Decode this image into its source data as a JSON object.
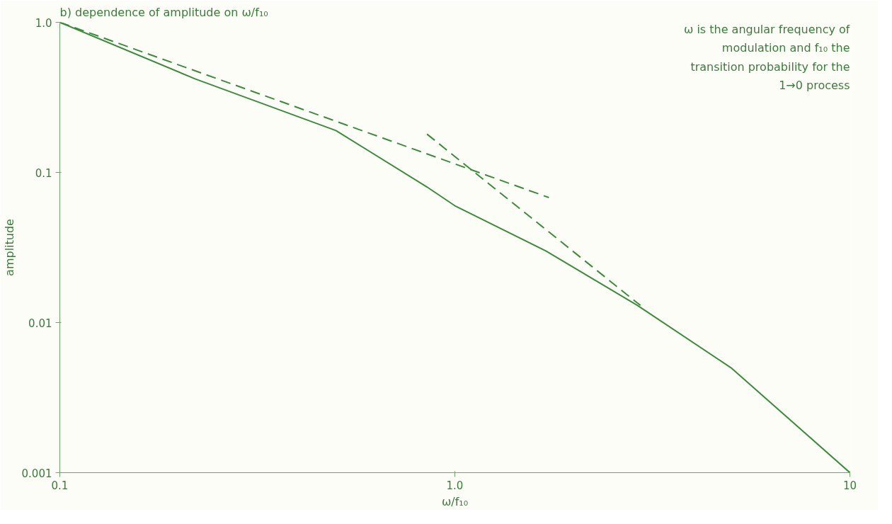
{
  "chart_data": {
    "type": "line",
    "title": "b) dependence of amplitude on ω/f₁₀",
    "xlabel": "ω/f₁₀",
    "ylabel": "amplitude",
    "annotations": [
      "ω is the angular frequency of modulation and f₁₀ the transition probability for the 1→0 process"
    ],
    "log": "xy",
    "grid": false,
    "marker": "none",
    "xlim": [
      0.1,
      10
    ],
    "ylim": [
      0.001,
      1.0
    ],
    "xticks": [
      0.1,
      {
        "value": 1,
        "label": "1.0"
      },
      10
    ],
    "yticks": [
      0.001,
      0.01,
      0.1,
      {
        "value": 1,
        "label": "1.0"
      }
    ],
    "series": [
      {
        "color": "#3d8a3d",
        "line_style": "solid",
        "x": [
          0.1,
          0.22,
          0.5,
          0.85,
          1.0,
          1.7,
          2.9,
          5.0,
          10
        ],
        "values": [
          1.0,
          0.42,
          0.19,
          0.08,
          0.06,
          0.03,
          0.013,
          0.005,
          0.001
        ]
      },
      {
        "color": "#3d8a3d",
        "line_style": "dashed",
        "x": [
          0.1,
          1.73
        ],
        "values": [
          1.0,
          0.068
        ]
      },
      {
        "color": "#3d8a3d",
        "line_style": "dashed",
        "x": [
          0.85,
          2.95
        ],
        "values": [
          0.18,
          0.013
        ]
      }
    ]
  }
}
